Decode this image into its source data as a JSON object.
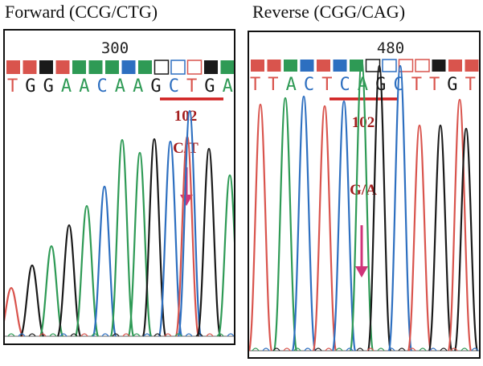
{
  "panels": [
    {
      "title": "Forward (CCG/CTG)",
      "position": "300",
      "bases": [
        "T",
        "G",
        "G",
        "A",
        "A",
        "C",
        "A",
        "A",
        "G",
        "C",
        "T",
        "G",
        "A"
      ],
      "codon_number": "102",
      "mutation": "C/T"
    },
    {
      "title": "Reverse (CGG/CAG)",
      "position": "480",
      "bases": [
        "T",
        "T",
        "A",
        "C",
        "T",
        "C",
        "A",
        "G",
        "C",
        "T",
        "T",
        "G",
        "T"
      ],
      "codon_number": "102",
      "mutation": "G/A"
    }
  ],
  "colors": {
    "A": "#2e9a55",
    "C": "#2d6fc0",
    "G": "#1a1a1a",
    "T": "#d9544d",
    "marker": "#d02020",
    "arrow": "#d0357a",
    "label": "#a31d1d"
  }
}
